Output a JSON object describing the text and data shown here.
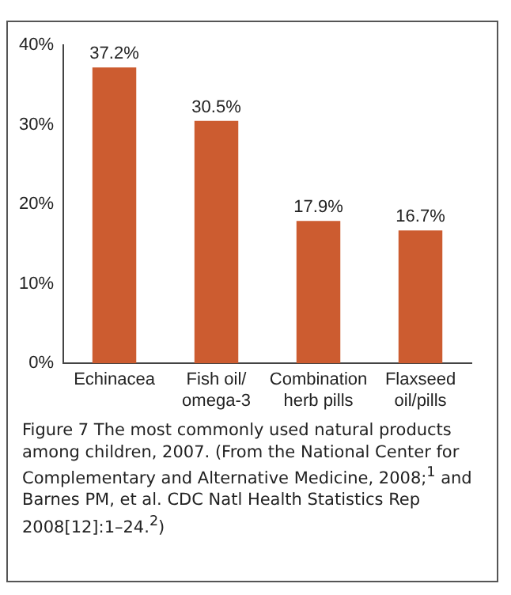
{
  "chart_data": {
    "type": "bar",
    "categories": [
      "Echinacea",
      "Fish oil/\nomega-3",
      "Combination\nherb pills",
      "Flaxseed\noil/pills"
    ],
    "values": [
      37.2,
      30.5,
      17.9,
      16.7
    ],
    "color": "#cc5c30",
    "value_labels": [
      "37.2%",
      "30.5%",
      "17.9%",
      "16.7%"
    ],
    "ylim": [
      0,
      40
    ],
    "yticks": [
      {
        "value": 0,
        "label": "0%"
      },
      {
        "value": 10,
        "label": "10%"
      },
      {
        "value": 20,
        "label": "20%"
      },
      {
        "value": 30,
        "label": "30%"
      },
      {
        "value": 40,
        "label": "40%"
      }
    ],
    "grid": false,
    "legend": false,
    "annotations": [
      "Figure 7 The most commonly used natural products among children, 2007. (From the National Center for Complementary and Alternative Medicine, 2008;$^{1}$ and Barnes PM, et al. CDC Natl Health Statistics Rep 2008[12]:1–24.$^{2}$)"
    ]
  }
}
